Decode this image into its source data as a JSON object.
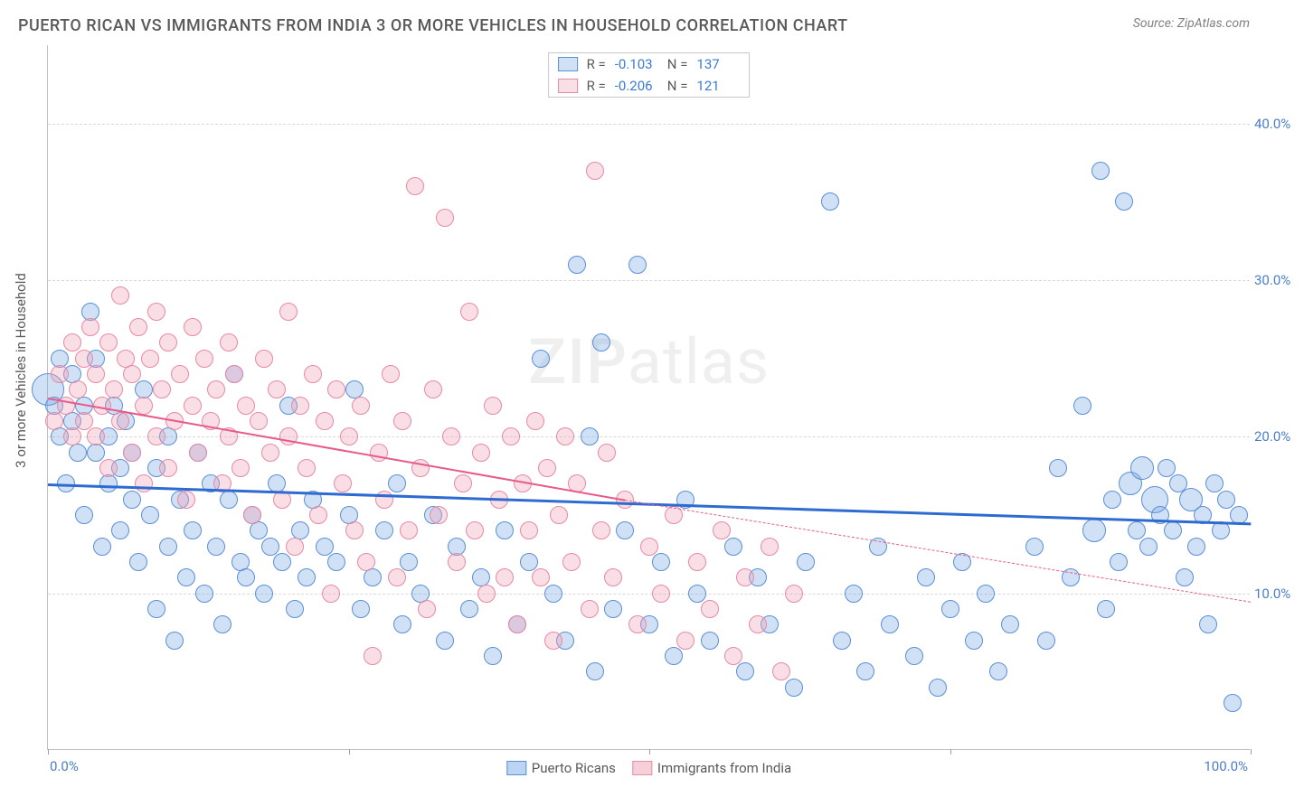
{
  "title": "PUERTO RICAN VS IMMIGRANTS FROM INDIA 3 OR MORE VEHICLES IN HOUSEHOLD CORRELATION CHART",
  "source": "Source: ZipAtlas.com",
  "y_axis_label": "3 or more Vehicles in Household",
  "watermark": {
    "part1": "ZIP",
    "part2": "atlas"
  },
  "chart": {
    "type": "scatter",
    "background_color": "#ffffff",
    "grid_color": "#d8d8d8",
    "axis_color": "#c0c0c0",
    "tick_label_color": "#4a7ec9",
    "tick_fontsize": 15,
    "title_fontsize": 18,
    "title_color": "#5a5a5a",
    "xlim": [
      0,
      100
    ],
    "ylim": [
      0,
      45
    ],
    "y_ticks": [
      10,
      20,
      30,
      40
    ],
    "y_tick_labels": [
      "10.0%",
      "20.0%",
      "30.0%",
      "40.0%"
    ],
    "x_tick_labels": {
      "left": "0.0%",
      "right": "100.0%"
    },
    "x_tick_marks": [
      0,
      25,
      50,
      75,
      100
    ],
    "series": [
      {
        "name": "Puerto Ricans",
        "marker_fill": "rgba(120,170,230,0.35)",
        "marker_stroke": "#5b8fd6",
        "marker_radius": 10,
        "r_value": "-0.103",
        "n_value": "137",
        "trend": {
          "color": "#2e6bd0",
          "width": 3,
          "solid_from_x": 0,
          "solid_to_x": 100,
          "y_start": 17.0,
          "y_end": 14.5
        },
        "points": [
          [
            0,
            23,
            18
          ],
          [
            0.5,
            22
          ],
          [
            1,
            20
          ],
          [
            1,
            25
          ],
          [
            1.5,
            17
          ],
          [
            2,
            24
          ],
          [
            2,
            21
          ],
          [
            2.5,
            19
          ],
          [
            3,
            22
          ],
          [
            3,
            15
          ],
          [
            3.5,
            28
          ],
          [
            4,
            25
          ],
          [
            4,
            19
          ],
          [
            4.5,
            13
          ],
          [
            5,
            20
          ],
          [
            5,
            17
          ],
          [
            5.5,
            22
          ],
          [
            6,
            14
          ],
          [
            6,
            18
          ],
          [
            6.5,
            21
          ],
          [
            7,
            16
          ],
          [
            7,
            19
          ],
          [
            7.5,
            12
          ],
          [
            8,
            23
          ],
          [
            8.5,
            15
          ],
          [
            9,
            18
          ],
          [
            9,
            9
          ],
          [
            10,
            13
          ],
          [
            10,
            20
          ],
          [
            10.5,
            7
          ],
          [
            11,
            16
          ],
          [
            11.5,
            11
          ],
          [
            12,
            14
          ],
          [
            12.5,
            19
          ],
          [
            13,
            10
          ],
          [
            13.5,
            17
          ],
          [
            14,
            13
          ],
          [
            14.5,
            8
          ],
          [
            15,
            16
          ],
          [
            15.5,
            24
          ],
          [
            16,
            12
          ],
          [
            16.5,
            11
          ],
          [
            17,
            15
          ],
          [
            17.5,
            14
          ],
          [
            18,
            10
          ],
          [
            18.5,
            13
          ],
          [
            19,
            17
          ],
          [
            19.5,
            12
          ],
          [
            20,
            22
          ],
          [
            20.5,
            9
          ],
          [
            21,
            14
          ],
          [
            21.5,
            11
          ],
          [
            22,
            16
          ],
          [
            23,
            13
          ],
          [
            24,
            12
          ],
          [
            25,
            15
          ],
          [
            25.5,
            23
          ],
          [
            26,
            9
          ],
          [
            27,
            11
          ],
          [
            28,
            14
          ],
          [
            29,
            17
          ],
          [
            29.5,
            8
          ],
          [
            30,
            12
          ],
          [
            31,
            10
          ],
          [
            32,
            15
          ],
          [
            33,
            7
          ],
          [
            34,
            13
          ],
          [
            35,
            9
          ],
          [
            36,
            11
          ],
          [
            37,
            6
          ],
          [
            38,
            14
          ],
          [
            39,
            8
          ],
          [
            40,
            12
          ],
          [
            41,
            25
          ],
          [
            42,
            10
          ],
          [
            43,
            7
          ],
          [
            44,
            31
          ],
          [
            45,
            20
          ],
          [
            45.5,
            5
          ],
          [
            46,
            26
          ],
          [
            47,
            9
          ],
          [
            48,
            14
          ],
          [
            49,
            31
          ],
          [
            50,
            8
          ],
          [
            51,
            12
          ],
          [
            52,
            6
          ],
          [
            53,
            16
          ],
          [
            54,
            10
          ],
          [
            55,
            7
          ],
          [
            57,
            13
          ],
          [
            58,
            5
          ],
          [
            59,
            11
          ],
          [
            60,
            8
          ],
          [
            62,
            4
          ],
          [
            63,
            12
          ],
          [
            65,
            35
          ],
          [
            66,
            7
          ],
          [
            67,
            10
          ],
          [
            68,
            5
          ],
          [
            69,
            13
          ],
          [
            70,
            8
          ],
          [
            72,
            6
          ],
          [
            73,
            11
          ],
          [
            74,
            4
          ],
          [
            75,
            9
          ],
          [
            76,
            12
          ],
          [
            77,
            7
          ],
          [
            78,
            10
          ],
          [
            79,
            5
          ],
          [
            80,
            8
          ],
          [
            82,
            13
          ],
          [
            83,
            7
          ],
          [
            84,
            18
          ],
          [
            85,
            11
          ],
          [
            86,
            22
          ],
          [
            87,
            14,
            13
          ],
          [
            87.5,
            37
          ],
          [
            88,
            9
          ],
          [
            88.5,
            16
          ],
          [
            89,
            12
          ],
          [
            89.5,
            35
          ],
          [
            90,
            17,
            13
          ],
          [
            90.5,
            14
          ],
          [
            91,
            18,
            13
          ],
          [
            91.5,
            13
          ],
          [
            92,
            16,
            15
          ],
          [
            92.5,
            15
          ],
          [
            93,
            18
          ],
          [
            93.5,
            14
          ],
          [
            94,
            17
          ],
          [
            94.5,
            11
          ],
          [
            95,
            16,
            13
          ],
          [
            95.5,
            13
          ],
          [
            96,
            15
          ],
          [
            96.5,
            8
          ],
          [
            97,
            17
          ],
          [
            97.5,
            14
          ],
          [
            98,
            16
          ],
          [
            98.5,
            3
          ],
          [
            99,
            15
          ]
        ]
      },
      {
        "name": "Immigrants from India",
        "marker_fill": "rgba(240,160,180,0.35)",
        "marker_stroke": "#e68aa5",
        "marker_radius": 10,
        "r_value": "-0.206",
        "n_value": "121",
        "trend": {
          "color": "#e85a8a",
          "width": 2.5,
          "solid_from_x": 0,
          "solid_to_x": 48,
          "dashed_to_x": 100,
          "y_start": 22.5,
          "y_end_solid": 16.0,
          "y_end": 9.5
        },
        "points": [
          [
            0.5,
            21
          ],
          [
            1,
            24
          ],
          [
            1.5,
            22
          ],
          [
            2,
            26
          ],
          [
            2,
            20
          ],
          [
            2.5,
            23
          ],
          [
            3,
            25
          ],
          [
            3,
            21
          ],
          [
            3.5,
            27
          ],
          [
            4,
            24
          ],
          [
            4,
            20
          ],
          [
            4.5,
            22
          ],
          [
            5,
            26
          ],
          [
            5,
            18
          ],
          [
            5.5,
            23
          ],
          [
            6,
            29
          ],
          [
            6,
            21
          ],
          [
            6.5,
            25
          ],
          [
            7,
            19
          ],
          [
            7,
            24
          ],
          [
            7.5,
            27
          ],
          [
            8,
            22
          ],
          [
            8,
            17
          ],
          [
            8.5,
            25
          ],
          [
            9,
            20
          ],
          [
            9,
            28
          ],
          [
            9.5,
            23
          ],
          [
            10,
            18
          ],
          [
            10,
            26
          ],
          [
            10.5,
            21
          ],
          [
            11,
            24
          ],
          [
            11.5,
            16
          ],
          [
            12,
            22
          ],
          [
            12,
            27
          ],
          [
            12.5,
            19
          ],
          [
            13,
            25
          ],
          [
            13.5,
            21
          ],
          [
            14,
            23
          ],
          [
            14.5,
            17
          ],
          [
            15,
            26
          ],
          [
            15,
            20
          ],
          [
            15.5,
            24
          ],
          [
            16,
            18
          ],
          [
            16.5,
            22
          ],
          [
            17,
            15
          ],
          [
            17.5,
            21
          ],
          [
            18,
            25
          ],
          [
            18.5,
            19
          ],
          [
            19,
            23
          ],
          [
            19.5,
            16
          ],
          [
            20,
            28
          ],
          [
            20,
            20
          ],
          [
            20.5,
            13
          ],
          [
            21,
            22
          ],
          [
            21.5,
            18
          ],
          [
            22,
            24
          ],
          [
            22.5,
            15
          ],
          [
            23,
            21
          ],
          [
            23.5,
            10
          ],
          [
            24,
            23
          ],
          [
            24.5,
            17
          ],
          [
            25,
            20
          ],
          [
            25.5,
            14
          ],
          [
            26,
            22
          ],
          [
            26.5,
            12
          ],
          [
            27,
            6
          ],
          [
            27.5,
            19
          ],
          [
            28,
            16
          ],
          [
            28.5,
            24
          ],
          [
            29,
            11
          ],
          [
            29.5,
            21
          ],
          [
            30,
            14
          ],
          [
            30.5,
            36
          ],
          [
            31,
            18
          ],
          [
            31.5,
            9
          ],
          [
            32,
            23
          ],
          [
            32.5,
            15
          ],
          [
            33,
            34
          ],
          [
            33.5,
            20
          ],
          [
            34,
            12
          ],
          [
            34.5,
            17
          ],
          [
            35,
            28
          ],
          [
            35.5,
            14
          ],
          [
            36,
            19
          ],
          [
            36.5,
            10
          ],
          [
            37,
            22
          ],
          [
            37.5,
            16
          ],
          [
            38,
            11
          ],
          [
            38.5,
            20
          ],
          [
            39,
            8
          ],
          [
            39.5,
            17
          ],
          [
            40,
            14
          ],
          [
            40.5,
            21
          ],
          [
            41,
            11
          ],
          [
            41.5,
            18
          ],
          [
            42,
            7
          ],
          [
            42.5,
            15
          ],
          [
            43,
            20
          ],
          [
            43.5,
            12
          ],
          [
            44,
            17
          ],
          [
            45,
            9
          ],
          [
            45.5,
            37
          ],
          [
            46,
            14
          ],
          [
            46.5,
            19
          ],
          [
            47,
            11
          ],
          [
            48,
            16
          ],
          [
            49,
            8
          ],
          [
            50,
            13
          ],
          [
            51,
            10
          ],
          [
            52,
            15
          ],
          [
            53,
            7
          ],
          [
            54,
            12
          ],
          [
            55,
            9
          ],
          [
            56,
            14
          ],
          [
            57,
            6
          ],
          [
            58,
            11
          ],
          [
            59,
            8
          ],
          [
            60,
            13
          ],
          [
            61,
            5
          ],
          [
            62,
            10
          ]
        ]
      }
    ]
  },
  "legend_top": {
    "r_label": "R =",
    "n_label": "N ="
  },
  "legend_bottom": [
    {
      "label": "Puerto Ricans",
      "fill": "rgba(120,170,230,0.5)",
      "stroke": "#5b8fd6"
    },
    {
      "label": "Immigrants from India",
      "fill": "rgba(240,160,180,0.5)",
      "stroke": "#e68aa5"
    }
  ]
}
